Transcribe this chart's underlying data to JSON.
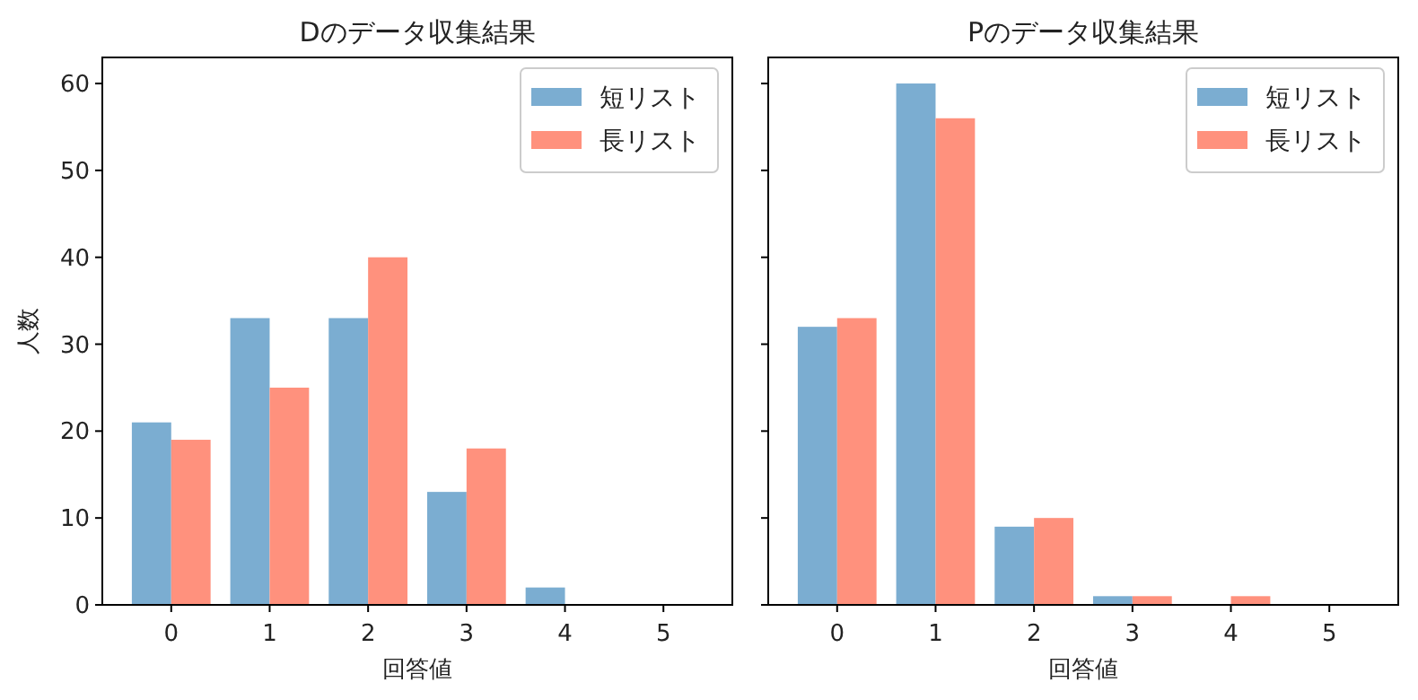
{
  "chart_data": [
    {
      "type": "bar",
      "title": "Dのデータ収集結果",
      "xlabel": "回答値",
      "ylabel": "人数",
      "categories": [
        "0",
        "1",
        "2",
        "3",
        "4",
        "5"
      ],
      "series": [
        {
          "name": "短リスト",
          "color": "#7badd1",
          "values": [
            21,
            33,
            33,
            13,
            2,
            0
          ]
        },
        {
          "name": "長リスト",
          "color": "#ff917d",
          "values": [
            19,
            25,
            40,
            18,
            0,
            0
          ]
        }
      ],
      "ylim": [
        0,
        63
      ],
      "yticks": [
        0,
        10,
        20,
        30,
        40,
        50,
        60
      ],
      "legend": "top right",
      "grid": false
    },
    {
      "type": "bar",
      "title": "Pのデータ収集結果",
      "xlabel": "回答値",
      "categories": [
        "0",
        "1",
        "2",
        "3",
        "4",
        "5"
      ],
      "series": [
        {
          "name": "短リスト",
          "color": "#7badd1",
          "values": [
            32,
            60,
            9,
            1,
            0,
            0
          ]
        },
        {
          "name": "長リスト",
          "color": "#ff917d",
          "values": [
            33,
            56,
            10,
            1,
            1,
            0
          ]
        }
      ],
      "ylim": [
        0,
        63
      ],
      "yticks": [
        0,
        10,
        20,
        30,
        40,
        50,
        60
      ],
      "legend": "top right",
      "grid": false,
      "tick_labels": "x"
    }
  ]
}
